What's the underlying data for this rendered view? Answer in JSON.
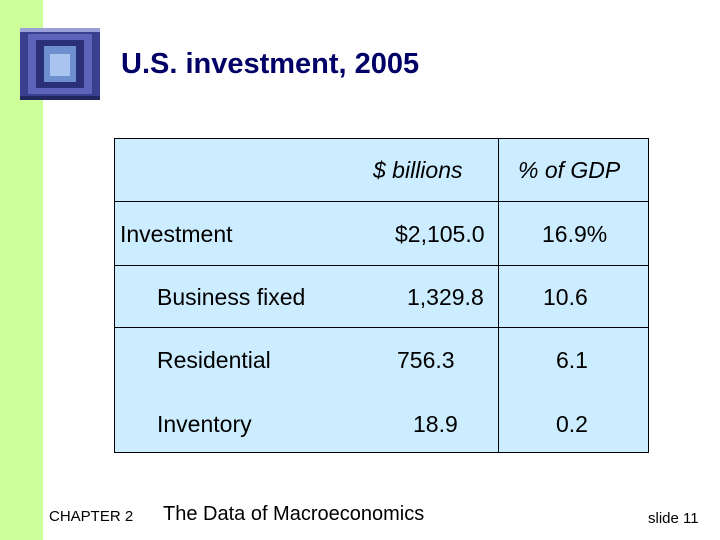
{
  "slide": {
    "title": "U.S. investment, 2005",
    "chapter": "CHAPTER 2",
    "chapter_title": "The Data of Macroeconomics",
    "slide_number": "slide 11"
  },
  "table": {
    "headers": [
      "$ billions",
      "% of GDP"
    ],
    "rows": [
      {
        "label": "Investment",
        "billions": "$2,105.0",
        "pct": "16.9%"
      },
      {
        "label": "Business fixed",
        "billions": "1,329.8",
        "pct": "10.6"
      },
      {
        "label": "Residential",
        "billions": "756.3",
        "pct": "6.1"
      },
      {
        "label": "Inventory",
        "billions": "18.9",
        "pct": "0.2"
      }
    ]
  },
  "colors": {
    "accent_bar": "#ccff99",
    "table_fill": "#ccecff",
    "title": "#000066"
  }
}
